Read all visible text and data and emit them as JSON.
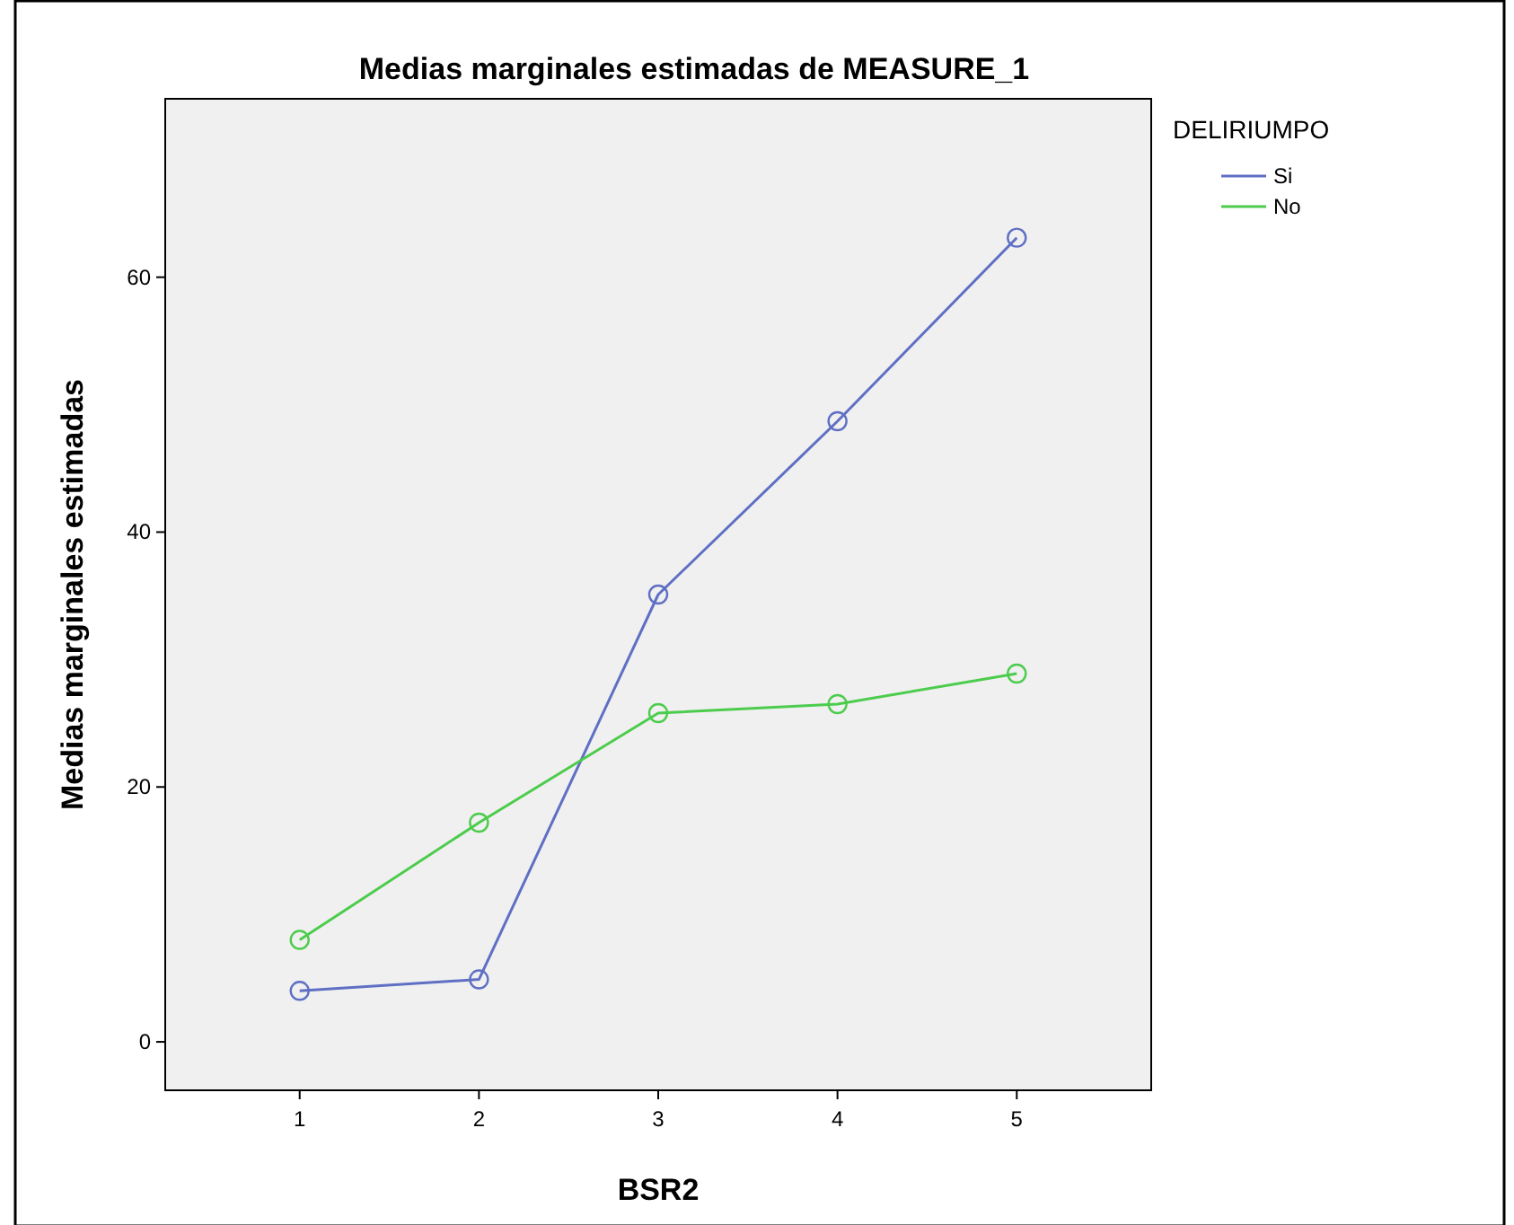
{
  "chart_data": {
    "type": "line",
    "title": "Medias marginales estimadas de MEASURE_1",
    "xlabel": "BSR2",
    "ylabel": "Medias marginales estimadas",
    "legend_title": "DELIRIUMPO",
    "x": [
      1,
      2,
      3,
      4,
      5
    ],
    "xlim": [
      0.25,
      5.75
    ],
    "xticks": [
      1,
      2,
      3,
      4,
      5
    ],
    "ylim": [
      -3.8,
      74
    ],
    "yticks": [
      0,
      20,
      40,
      60
    ],
    "grid": false,
    "legend": "right",
    "marker": "circle",
    "line_style": "solid",
    "series": [
      {
        "name": "Si",
        "color": "#5f6fc4",
        "values": [
          4.0,
          4.9,
          35.1,
          48.7,
          63.1
        ]
      },
      {
        "name": "No",
        "color": "#4ccc4c",
        "values": [
          8.0,
          17.2,
          25.8,
          26.5,
          28.9
        ]
      }
    ]
  }
}
